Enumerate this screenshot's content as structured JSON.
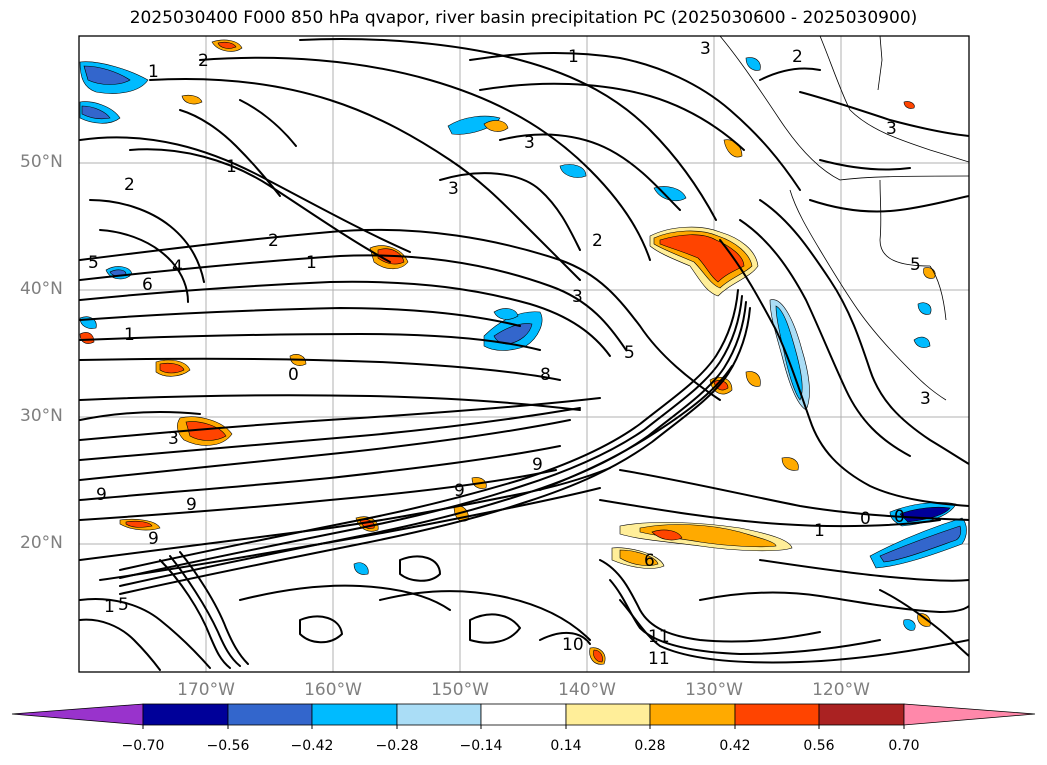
{
  "title": "2025030400 F000 850 hPa qvapor, river basin precipitation PC (2025030600 - 2025030900)",
  "lat_labels": [
    "50°N",
    "40°N",
    "30°N",
    "20°N"
  ],
  "lon_labels": [
    "170°W",
    "160°W",
    "150°W",
    "140°W",
    "130°W",
    "120°W"
  ],
  "colorbar": {
    "ticks": [
      "−0.70",
      "−0.56",
      "−0.42",
      "−0.28",
      "−0.14",
      "0.14",
      "0.28",
      "0.42",
      "0.56",
      "0.70"
    ],
    "colors": [
      "#9933cc",
      "#000099",
      "#3366cc",
      "#00bbff",
      "#aaddf6",
      "#ffffff",
      "#ffee99",
      "#ffaa00",
      "#ff4400",
      "#aa2222",
      "#ff88aa"
    ],
    "extend": "both"
  },
  "contour_labels": [
    "1",
    "1",
    "2",
    "3",
    "3",
    "1",
    "2",
    "3",
    "2",
    "5",
    "6",
    "4",
    "1",
    "2",
    "3",
    "5",
    "0",
    "9",
    "9",
    "9",
    "1",
    "0",
    "0",
    "3",
    "5",
    "8",
    "9",
    "9",
    "11",
    "11",
    "10",
    "6",
    "5",
    "2",
    "3",
    "3",
    "1",
    "1"
  ]
}
